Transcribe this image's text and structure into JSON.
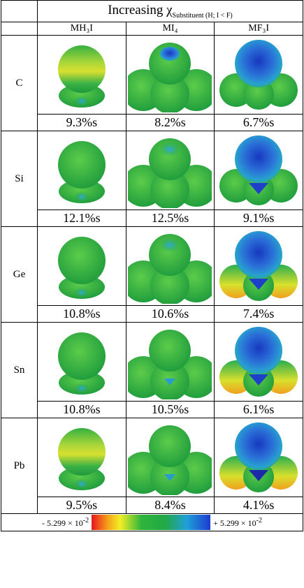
{
  "header": {
    "label": "Increasing χ",
    "subscript": "Substituent (H; I < F)"
  },
  "columns": [
    "MH₃I",
    "MI₄",
    "MF₃I"
  ],
  "rows": [
    {
      "element": "C",
      "values": [
        "9.3%s",
        "8.2%s",
        "6.7%s"
      ]
    },
    {
      "element": "Si",
      "values": [
        "12.1%s",
        "12.5%s",
        "9.1%s"
      ]
    },
    {
      "element": "Ge",
      "values": [
        "10.8%s",
        "10.6%s",
        "7.4%s"
      ]
    },
    {
      "element": "Sn",
      "values": [
        "10.8%s",
        "10.5%s",
        "6.1%s"
      ]
    },
    {
      "element": "Pb",
      "values": [
        "9.5%s",
        "8.4%s",
        "4.1%s"
      ]
    }
  ],
  "scale": {
    "min": {
      "text": "- 5.299 × 10",
      "exponent": "-2"
    },
    "max": {
      "text": "+ 5.299 × 10",
      "exponent": "-2"
    }
  }
}
